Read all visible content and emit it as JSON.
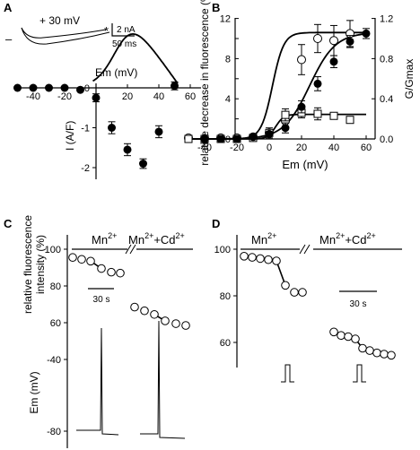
{
  "chart_data": [
    {
      "panel": "A",
      "type": "line",
      "inset": {
        "label": "+ 30 mV",
        "star": "*",
        "dash": "–",
        "scale_y": "2 nA",
        "scale_x": "50 ms"
      },
      "xlabel": "Em (mV)",
      "ylabel": "I (A/F)",
      "xticks": [
        -40,
        -20,
        0,
        20,
        40,
        60
      ],
      "yticks": [
        0,
        -1,
        -2
      ],
      "xlim": [
        -50,
        65
      ],
      "ylim": [
        -2.5,
        0.15
      ],
      "series": [
        {
          "x": [
            -50,
            -40,
            -30,
            -20,
            -10,
            0,
            10,
            20,
            30,
            40,
            50
          ],
          "y": [
            0,
            0,
            0,
            0,
            -0.05,
            -0.25,
            -1.0,
            -1.55,
            -1.9,
            -1.1,
            0.05
          ],
          "err": [
            0.02,
            0.02,
            0.02,
            0.02,
            0.05,
            0.1,
            0.15,
            0.15,
            0.12,
            0.15,
            0.1
          ]
        }
      ]
    },
    {
      "panel": "B",
      "type": "scatter",
      "xlabel": "Em (mV)",
      "ylabel": "relative decrease in fluorescence (%)",
      "ylabel_right": "G/Gmax",
      "xticks": [
        -40,
        -20,
        0,
        20,
        40,
        60
      ],
      "yticks": [
        0,
        2,
        4,
        6,
        8,
        10,
        12
      ],
      "yticks_right": [
        "0.0",
        "0.4",
        "0.8",
        "1.2"
      ],
      "xlim": [
        -55,
        65
      ],
      "ylim": [
        0,
        12
      ],
      "series": [
        {
          "marker": "open-circle",
          "x": [
            -50,
            -40,
            -30,
            -20,
            -10,
            0,
            10,
            20,
            30,
            40,
            50
          ],
          "y": [
            0.1,
            0.05,
            0.1,
            0.1,
            0.2,
            0.6,
            1.8,
            7.9,
            10.0,
            9.8,
            10.5
          ],
          "err": [
            0.2,
            0.2,
            0.2,
            0.2,
            0.3,
            0.5,
            0.8,
            1.5,
            1.4,
            1.5,
            1.3
          ]
        },
        {
          "marker": "filled-circle",
          "x": [
            -40,
            -30,
            -20,
            -10,
            0,
            10,
            20,
            30,
            40,
            50,
            60
          ],
          "y": [
            0.0,
            0.0,
            0.0,
            0.02,
            0.05,
            0.11,
            0.32,
            0.55,
            0.77,
            0.97,
            1.05
          ],
          "err": [
            0.01,
            0.01,
            0.01,
            0.02,
            0.03,
            0.05,
            0.06,
            0.07,
            0.06,
            0.06,
            0.05
          ]
        },
        {
          "marker": "open-square",
          "x": [
            -50,
            -40,
            -30,
            -20,
            -10,
            0,
            10,
            20,
            30,
            40,
            50
          ],
          "y": [
            0.0,
            0.0,
            0.0,
            0.0,
            0.1,
            0.6,
            2.4,
            2.6,
            2.5,
            2.3,
            1.9
          ],
          "err": [
            0.1,
            0.1,
            0.1,
            0.1,
            0.2,
            0.5,
            0.6,
            0.5,
            0.6,
            0.4,
            0.3
          ]
        }
      ]
    },
    {
      "panel": "C",
      "type": "scatter",
      "conditions": [
        "Mn2+",
        "Mn2+ + Cd2+"
      ],
      "ylabel_top": "relative fluorescence intensity (%)",
      "ylabel_bottom": "Em (mV)",
      "yticks_top": [
        100,
        80,
        60
      ],
      "yticks_bottom": [
        -40,
        -80
      ],
      "scale_x": "30 s",
      "series": [
        {
          "name": "Mn2+",
          "y": [
            95.5,
            94.5,
            93.5,
            89.5,
            87.5,
            87.0
          ]
        },
        {
          "name": "Mn2+ + Cd2+",
          "y": [
            68.5,
            66.5,
            64.5,
            61.0,
            59.5,
            58.5
          ]
        }
      ]
    },
    {
      "panel": "D",
      "type": "scatter",
      "conditions": [
        "Mn2+",
        "Mn2+ + Cd2+"
      ],
      "yticks": [
        100,
        80,
        60
      ],
      "scale_x": "30 s",
      "series": [
        {
          "name": "Mn2+",
          "y": [
            97,
            96.5,
            96,
            95.5,
            95,
            84.5,
            81.5,
            81.5
          ]
        },
        {
          "name": "Mn2+ + Cd2+",
          "y": [
            64.5,
            63,
            62.5,
            61.5,
            57.5,
            56.5,
            55.5,
            55,
            54.5
          ]
        }
      ]
    }
  ],
  "labels": {
    "A": "A",
    "B": "B",
    "C": "C",
    "D": "D",
    "mn": "Mn",
    "two_plus": "2+",
    "plus": "+",
    "cd": "Cd"
  }
}
